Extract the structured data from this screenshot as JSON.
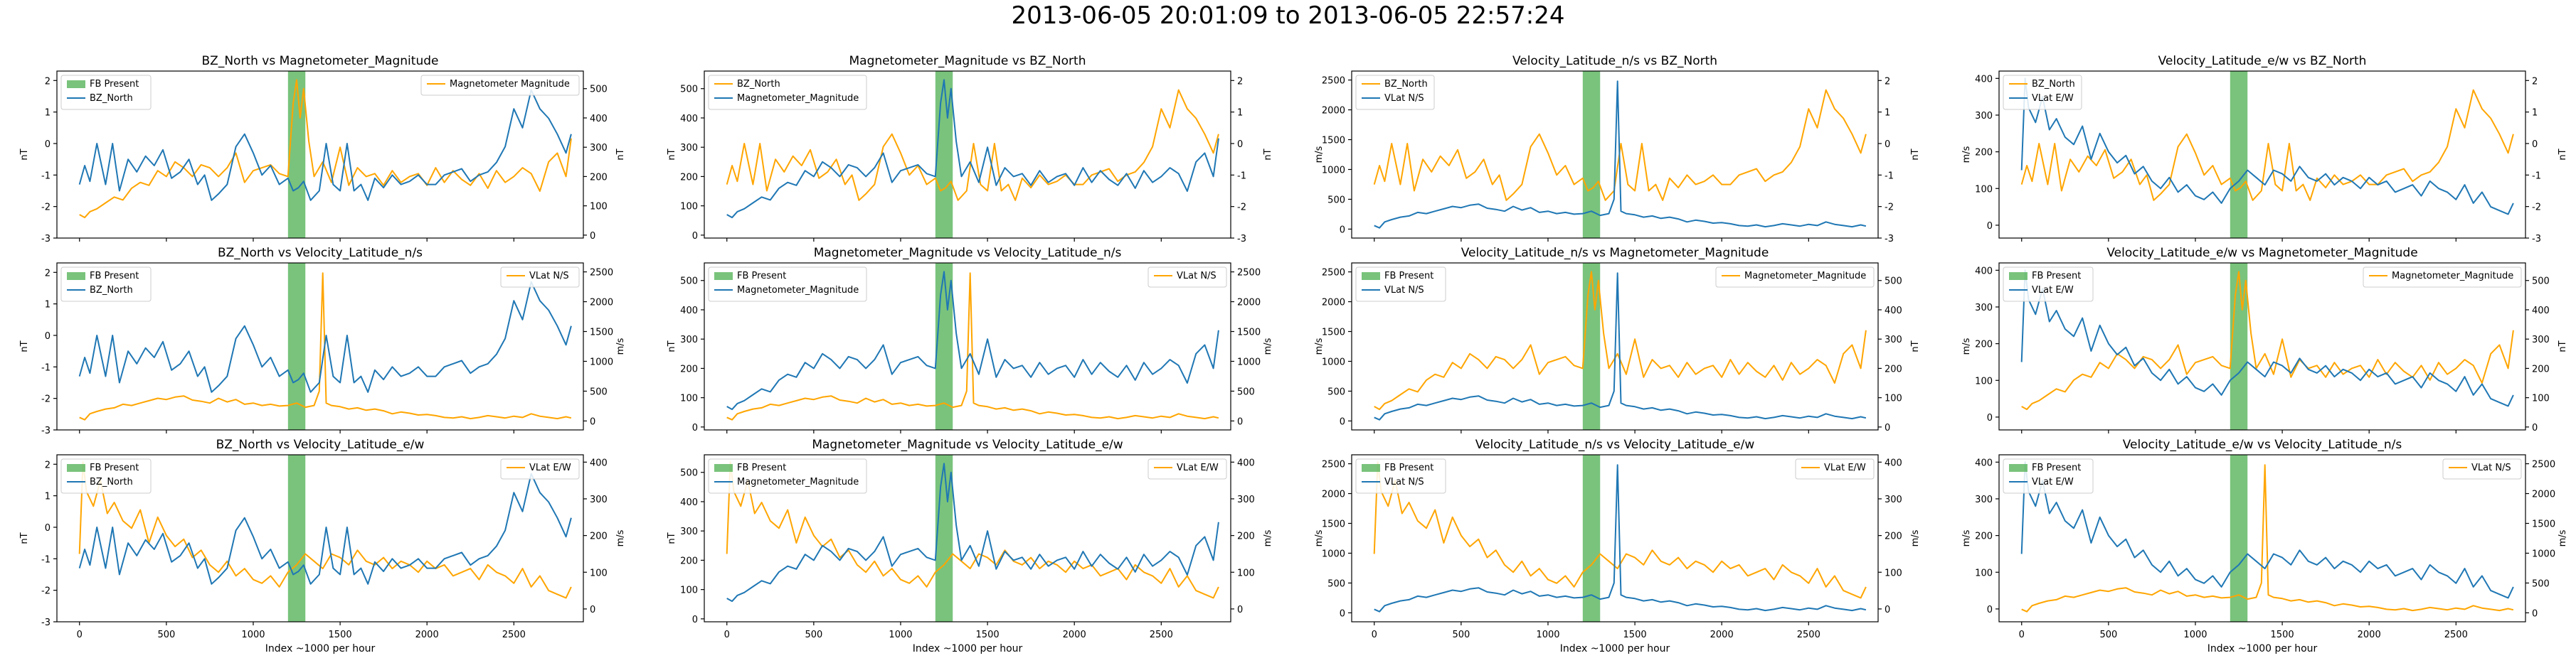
{
  "figure": {
    "title": "2013-06-05 20:01:09 to 2013-06-05 22:57:24"
  },
  "colors": {
    "orange": "#ffa500",
    "blue": "#1f77b4",
    "fb": "#4caf50"
  },
  "chart_data": [
    {
      "type": "line",
      "title": "BZ_North vs Magnetometer_Magnitude",
      "xlabel": "",
      "left": "BZ_North",
      "right": "Magnetometer_Magnitude",
      "left_ylabel": "nT",
      "right_ylabel": "nT",
      "legend_left": [
        "FB Present",
        "BZ_North"
      ],
      "legend_right": [
        "Magnetometer Magnitude"
      ],
      "fb_range": [
        1200,
        1300
      ],
      "xlim": [
        -130,
        2900
      ]
    },
    {
      "type": "line",
      "title": "Magnetometer_Magnitude vs BZ_North",
      "xlabel": "",
      "left": "Magnetometer_Magnitude",
      "right": "BZ_North",
      "left_ylabel": "nT",
      "right_ylabel": "nT",
      "legend_left": [
        "BZ_North",
        "Magnetometer_Magnitude"
      ],
      "legend_right": [],
      "fb_range": [
        1200,
        1300
      ],
      "xlim": [
        -130,
        2900
      ]
    },
    {
      "type": "line",
      "title": "Velocity_Latitude_n/s vs BZ_North",
      "xlabel": "",
      "left": "Velocity_Latitude_n/s",
      "right": "BZ_North",
      "left_ylabel": "m/s",
      "right_ylabel": "nT",
      "legend_left": [
        "BZ_North",
        "VLat N/S"
      ],
      "legend_right": [],
      "fb_range": [
        1200,
        1300
      ],
      "xlim": [
        -130,
        2900
      ]
    },
    {
      "type": "line",
      "title": "Velocity_Latitude_e/w vs BZ_North",
      "xlabel": "",
      "left": "Velocity_Latitude_e/w",
      "right": "BZ_North",
      "left_ylabel": "m/s",
      "right_ylabel": "nT",
      "legend_left": [
        "BZ_North",
        "VLat E/W"
      ],
      "legend_right": [],
      "fb_range": [
        1200,
        1300
      ],
      "xlim": [
        -130,
        2900
      ]
    },
    {
      "type": "line",
      "title": "BZ_North vs Velocity_Latitude_n/s",
      "xlabel": "",
      "left": "BZ_North",
      "right": "Velocity_Latitude_n/s",
      "left_ylabel": "nT",
      "right_ylabel": "m/s",
      "legend_left": [
        "FB Present",
        "BZ_North"
      ],
      "legend_right": [
        "VLat N/S"
      ],
      "fb_range": [
        1200,
        1300
      ],
      "xlim": [
        -130,
        2900
      ]
    },
    {
      "type": "line",
      "title": "Magnetometer_Magnitude vs Velocity_Latitude_n/s",
      "xlabel": "",
      "left": "Magnetometer_Magnitude",
      "right": "Velocity_Latitude_n/s",
      "left_ylabel": "nT",
      "right_ylabel": "m/s",
      "legend_left": [
        "FB Present",
        "Magnetometer_Magnitude"
      ],
      "legend_right": [
        "VLat N/S"
      ],
      "fb_range": [
        1200,
        1300
      ],
      "xlim": [
        -130,
        2900
      ]
    },
    {
      "type": "line",
      "title": "Velocity_Latitude_n/s vs Magnetometer_Magnitude",
      "xlabel": "",
      "left": "Velocity_Latitude_n/s",
      "right": "Magnetometer_Magnitude",
      "left_ylabel": "m/s",
      "right_ylabel": "nT",
      "legend_left": [
        "FB Present",
        "VLat N/S"
      ],
      "legend_right": [
        "Magnetometer_Magnitude"
      ],
      "fb_range": [
        1200,
        1300
      ],
      "xlim": [
        -130,
        2900
      ]
    },
    {
      "type": "line",
      "title": "Velocity_Latitude_e/w vs Magnetometer_Magnitude",
      "xlabel": "",
      "left": "Velocity_Latitude_e/w",
      "right": "Magnetometer_Magnitude",
      "left_ylabel": "m/s",
      "right_ylabel": "nT",
      "legend_left": [
        "FB Present",
        "VLat E/W"
      ],
      "legend_right": [
        "Magnetometer_Magnitude"
      ],
      "fb_range": [
        1200,
        1300
      ],
      "xlim": [
        -130,
        2900
      ]
    },
    {
      "type": "line",
      "title": "BZ_North vs Velocity_Latitude_e/w",
      "xlabel": "Index ~1000 per hour",
      "left": "BZ_North",
      "right": "Velocity_Latitude_e/w",
      "left_ylabel": "nT",
      "right_ylabel": "m/s",
      "legend_left": [
        "FB Present",
        "BZ_North"
      ],
      "legend_right": [
        "VLat E/W"
      ],
      "fb_range": [
        1200,
        1300
      ],
      "xlim": [
        -130,
        2900
      ]
    },
    {
      "type": "line",
      "title": "Magnetometer_Magnitude vs Velocity_Latitude_e/w",
      "xlabel": "Index ~1000 per hour",
      "left": "Magnetometer_Magnitude",
      "right": "Velocity_Latitude_e/w",
      "left_ylabel": "nT",
      "right_ylabel": "m/s",
      "legend_left": [
        "FB Present",
        "Magnetometer_Magnitude"
      ],
      "legend_right": [
        "VLat E/W"
      ],
      "fb_range": [
        1200,
        1300
      ],
      "xlim": [
        -130,
        2900
      ]
    },
    {
      "type": "line",
      "title": "Velocity_Latitude_n/s vs Velocity_Latitude_e/w",
      "xlabel": "Index ~1000 per hour",
      "left": "Velocity_Latitude_n/s",
      "right": "Velocity_Latitude_e/w",
      "left_ylabel": "m/s",
      "right_ylabel": "m/s",
      "legend_left": [
        "FB Present",
        "VLat N/S"
      ],
      "legend_right": [
        "VLat E/W"
      ],
      "fb_range": [
        1200,
        1300
      ],
      "xlim": [
        -130,
        2900
      ]
    },
    {
      "type": "line",
      "title": "Velocity_Latitude_e/w vs Velocity_Latitude_n/s",
      "xlabel": "Index ~1000 per hour",
      "left": "Velocity_Latitude_e/w",
      "right": "Velocity_Latitude_n/s",
      "left_ylabel": "m/s",
      "right_ylabel": "m/s",
      "legend_left": [
        "FB Present",
        "VLat E/W"
      ],
      "legend_right": [
        "VLat N/S"
      ],
      "fb_range": [
        1200,
        1300
      ],
      "xlim": [
        -130,
        2900
      ]
    }
  ],
  "series": {
    "BZ_North": {
      "ylim": [
        -3,
        2.3
      ],
      "ticks": [
        -3,
        -2,
        -1,
        0,
        1,
        2
      ],
      "x": [
        0,
        30,
        60,
        100,
        150,
        190,
        230,
        280,
        330,
        380,
        430,
        480,
        530,
        580,
        630,
        680,
        720,
        760,
        800,
        850,
        900,
        950,
        1000,
        1050,
        1100,
        1150,
        1200,
        1230,
        1260,
        1290,
        1330,
        1380,
        1420,
        1460,
        1500,
        1540,
        1580,
        1620,
        1660,
        1700,
        1750,
        1800,
        1850,
        1900,
        1950,
        2000,
        2050,
        2100,
        2150,
        2200,
        2250,
        2300,
        2350,
        2400,
        2450,
        2500,
        2550,
        2600,
        2650,
        2700,
        2750,
        2800,
        2830
      ],
      "y": [
        -1.3,
        -0.7,
        -1.2,
        0,
        -1.3,
        0,
        -1.5,
        -0.5,
        -0.9,
        -0.4,
        -0.7,
        -0.2,
        -1.1,
        -0.9,
        -0.5,
        -1.3,
        -1.0,
        -1.8,
        -1.6,
        -1.3,
        -0.1,
        0.3,
        -0.3,
        -1.0,
        -0.7,
        -1.3,
        -1.1,
        -1.5,
        -1.4,
        -1.2,
        -1.8,
        -1.5,
        0,
        -1.3,
        -1.5,
        0,
        -1.5,
        -1.3,
        -1.8,
        -1.1,
        -1.4,
        -1.0,
        -1.3,
        -1.2,
        -1.0,
        -1.3,
        -1.3,
        -1.0,
        -0.9,
        -0.8,
        -1.2,
        -1.0,
        -0.9,
        -0.6,
        -0.1,
        1.1,
        0.5,
        1.7,
        1.1,
        0.8,
        0.3,
        -0.3,
        0.3
      ]
    },
    "Magnetometer_Magnitude": {
      "ylim": [
        -10,
        560
      ],
      "ticks": [
        0,
        100,
        200,
        300,
        400,
        500
      ],
      "x": [
        0,
        30,
        60,
        100,
        150,
        200,
        250,
        300,
        350,
        400,
        450,
        500,
        550,
        600,
        650,
        700,
        750,
        800,
        850,
        900,
        950,
        1000,
        1050,
        1100,
        1150,
        1200,
        1230,
        1250,
        1270,
        1290,
        1320,
        1350,
        1400,
        1450,
        1500,
        1550,
        1600,
        1650,
        1700,
        1750,
        1800,
        1850,
        1900,
        1950,
        2000,
        2050,
        2100,
        2150,
        2200,
        2250,
        2300,
        2350,
        2400,
        2450,
        2500,
        2550,
        2600,
        2650,
        2700,
        2750,
        2800,
        2830
      ],
      "y": [
        70,
        60,
        80,
        90,
        110,
        130,
        120,
        160,
        180,
        170,
        220,
        200,
        250,
        230,
        200,
        240,
        230,
        200,
        230,
        280,
        180,
        220,
        230,
        240,
        210,
        200,
        450,
        530,
        400,
        500,
        320,
        200,
        250,
        180,
        300,
        170,
        230,
        200,
        210,
        170,
        220,
        180,
        200,
        210,
        170,
        230,
        180,
        220,
        190,
        170,
        210,
        160,
        220,
        180,
        200,
        230,
        210,
        150,
        250,
        280,
        200,
        330
      ]
    },
    "Velocity_Latitude_n/s": {
      "ylim": [
        -150,
        2650
      ],
      "ticks": [
        0,
        500,
        1000,
        1500,
        2000,
        2500
      ],
      "x": [
        0,
        30,
        60,
        100,
        150,
        200,
        250,
        300,
        350,
        400,
        450,
        500,
        550,
        600,
        650,
        700,
        750,
        800,
        850,
        900,
        950,
        1000,
        1050,
        1100,
        1150,
        1200,
        1250,
        1300,
        1350,
        1380,
        1400,
        1420,
        1450,
        1500,
        1550,
        1600,
        1650,
        1700,
        1750,
        1800,
        1850,
        1900,
        1950,
        2000,
        2050,
        2100,
        2150,
        2200,
        2250,
        2300,
        2350,
        2400,
        2450,
        2500,
        2550,
        2600,
        2650,
        2700,
        2750,
        2800,
        2830
      ],
      "y": [
        60,
        20,
        120,
        160,
        200,
        220,
        280,
        260,
        300,
        340,
        380,
        360,
        400,
        420,
        350,
        330,
        300,
        380,
        320,
        360,
        280,
        300,
        260,
        280,
        250,
        260,
        300,
        230,
        260,
        500,
        2480,
        300,
        260,
        240,
        200,
        220,
        180,
        200,
        170,
        120,
        150,
        130,
        100,
        110,
        90,
        60,
        50,
        70,
        40,
        60,
        90,
        70,
        50,
        80,
        60,
        120,
        80,
        60,
        40,
        70,
        50
      ]
    },
    "Velocity_Latitude_e/w": {
      "ylim": [
        -35,
        420
      ],
      "ticks": [
        0,
        100,
        200,
        300,
        400
      ],
      "x": [
        0,
        20,
        40,
        80,
        120,
        160,
        200,
        250,
        300,
        350,
        400,
        450,
        500,
        550,
        600,
        650,
        700,
        750,
        800,
        850,
        900,
        950,
        1000,
        1050,
        1100,
        1150,
        1200,
        1250,
        1300,
        1350,
        1400,
        1450,
        1500,
        1550,
        1600,
        1650,
        1700,
        1750,
        1800,
        1850,
        1900,
        1950,
        2000,
        2050,
        2100,
        2150,
        2200,
        2250,
        2300,
        2350,
        2400,
        2450,
        2500,
        2550,
        2600,
        2650,
        2700,
        2750,
        2800,
        2830
      ],
      "y": [
        150,
        400,
        320,
        280,
        350,
        260,
        290,
        240,
        220,
        270,
        180,
        250,
        200,
        170,
        190,
        140,
        160,
        120,
        100,
        130,
        90,
        110,
        80,
        70,
        90,
        60,
        100,
        120,
        150,
        130,
        110,
        150,
        140,
        120,
        160,
        130,
        120,
        140,
        110,
        130,
        120,
        100,
        130,
        110,
        120,
        90,
        100,
        110,
        80,
        120,
        100,
        90,
        70,
        110,
        60,
        90,
        50,
        40,
        30,
        60
      ]
    }
  }
}
